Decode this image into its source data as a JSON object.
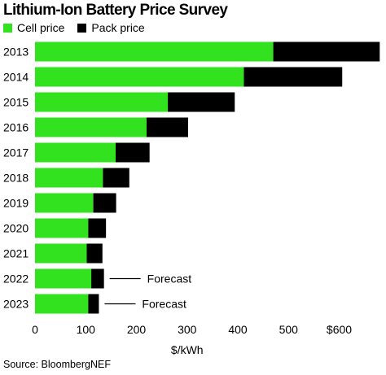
{
  "title": "Lithium-Ion Battery Price Survey",
  "legend": {
    "cell": "Cell price",
    "pack": "Pack price"
  },
  "source": "Source: BloombergNEF",
  "colors": {
    "cell": "#33e21e",
    "pack": "#000000"
  },
  "chart_data": {
    "type": "bar",
    "orientation": "horizontal",
    "stacked": true,
    "title": "Lithium-Ion Battery Price Survey",
    "xlabel": "$/kWh",
    "ylabel": "",
    "xlim": [
      0,
      680
    ],
    "x_ticks": [
      0,
      100,
      200,
      300,
      400,
      500,
      600
    ],
    "x_tick_labels": [
      "0",
      "100",
      "200",
      "300",
      "400",
      "500",
      "$600"
    ],
    "categories": [
      "2013",
      "2014",
      "2015",
      "2016",
      "2017",
      "2018",
      "2019",
      "2020",
      "2021",
      "2022",
      "2023"
    ],
    "series": [
      {
        "name": "Cell price",
        "color": "#33e21e",
        "values": [
          470,
          412,
          262,
          220,
          159,
          134,
          115,
          105,
          102,
          111,
          105
        ]
      },
      {
        "name": "Pack price",
        "color": "#000000",
        "values": [
          210,
          194,
          132,
          82,
          67,
          52,
          45,
          35,
          31,
          25,
          21
        ]
      }
    ],
    "annotations": [
      {
        "category": "2022",
        "text": "Forecast"
      },
      {
        "category": "2023",
        "text": "Forecast"
      }
    ],
    "grid": false,
    "legend_position": "top-left"
  }
}
